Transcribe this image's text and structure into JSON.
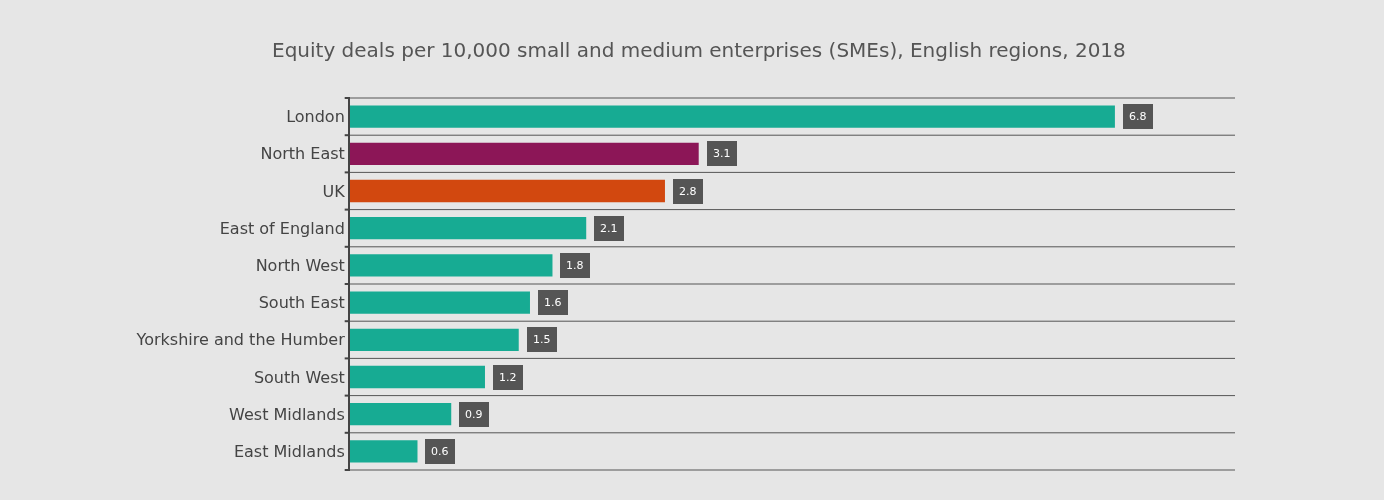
{
  "chart_data": {
    "type": "bar",
    "orientation": "horizontal",
    "title": "Equity deals per 10,000 small and medium enterprises (SMEs), English regions, 2018",
    "categories": [
      "London",
      "North East",
      "UK",
      "East of England",
      "North West",
      "South East",
      "Yorkshire and the Humber",
      "South West",
      "West Midlands",
      "East Midlands"
    ],
    "values": [
      6.8,
      3.1,
      2.8,
      2.1,
      1.8,
      1.6,
      1.5,
      1.2,
      0.9,
      0.6
    ],
    "colors": [
      "#17ab93",
      "#8c1657",
      "#d2480f",
      "#17ab93",
      "#17ab93",
      "#17ab93",
      "#17ab93",
      "#17ab93",
      "#17ab93",
      "#17ab93"
    ],
    "data_labels": true,
    "grid": "y"
  }
}
